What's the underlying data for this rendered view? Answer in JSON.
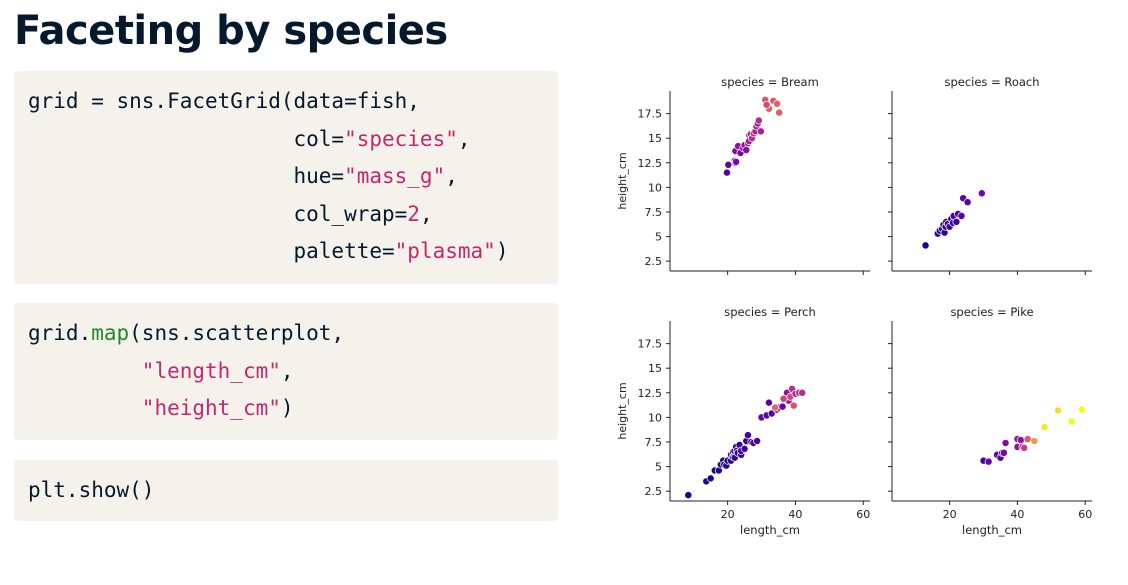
{
  "slide": {
    "title": "Faceting by species"
  },
  "code_blocks": [
    {
      "lines": [
        [
          {
            "t": "grid = sns.FacetGrid(data=fish,"
          }
        ],
        [
          {
            "t": "                     col="
          },
          {
            "t": "\"species\"",
            "c": "str"
          },
          {
            "t": ","
          }
        ],
        [
          {
            "t": "                     hue="
          },
          {
            "t": "\"mass_g\"",
            "c": "str"
          },
          {
            "t": ","
          }
        ],
        [
          {
            "t": "                     col_wrap="
          },
          {
            "t": "2",
            "c": "num"
          },
          {
            "t": ","
          }
        ],
        [
          {
            "t": "                     palette="
          },
          {
            "t": "\"plasma\"",
            "c": "str"
          },
          {
            "t": ")"
          }
        ]
      ]
    },
    {
      "lines": [
        [
          {
            "t": "grid."
          },
          {
            "t": "map",
            "c": "fn"
          },
          {
            "t": "(sns.scatterplot,"
          }
        ],
        [
          {
            "t": "         "
          },
          {
            "t": "\"length_cm\"",
            "c": "str"
          },
          {
            "t": ","
          }
        ],
        [
          {
            "t": "         "
          },
          {
            "t": "\"height_cm\"",
            "c": "str"
          },
          {
            "t": ")"
          }
        ]
      ]
    },
    {
      "lines": [
        [
          {
            "t": "plt.show()"
          }
        ]
      ]
    }
  ],
  "chart_data": {
    "type": "scatter",
    "layout": "facet-grid 2x2, shared axes",
    "xlabel": "length_cm",
    "ylabel": "height_cm",
    "xlim": [
      3,
      62
    ],
    "ylim": [
      1.5,
      19.8
    ],
    "xticks": [
      20,
      40,
      60
    ],
    "yticks": [
      2.5,
      5.0,
      7.5,
      10.0,
      12.5,
      15.0,
      17.5
    ],
    "palette": [
      "#0d0887",
      "#5302a3",
      "#8b0aa5",
      "#b83289",
      "#db5c68",
      "#f48849",
      "#febc2a",
      "#f0f921"
    ],
    "hue_range": [
      5,
      1650
    ],
    "facets": [
      {
        "title": "species = Bream",
        "points": [
          [
            19.8,
            11.5,
            242
          ],
          [
            20.2,
            12.3,
            290
          ],
          [
            22.1,
            12.7,
            340
          ],
          [
            22.3,
            12.5,
            363
          ],
          [
            22.5,
            12.6,
            430
          ],
          [
            22.3,
            13.7,
            450
          ],
          [
            23.1,
            14.2,
            500
          ],
          [
            23.8,
            13.5,
            390
          ],
          [
            24.6,
            14.0,
            450
          ],
          [
            25.0,
            14.3,
            500
          ],
          [
            25.5,
            13.8,
            475
          ],
          [
            26.0,
            14.5,
            500
          ],
          [
            26.4,
            15.3,
            500
          ],
          [
            26.3,
            14.7,
            600
          ],
          [
            26.8,
            15.4,
            600
          ],
          [
            27.2,
            15.0,
            700
          ],
          [
            27.7,
            15.5,
            700
          ],
          [
            28.2,
            15.7,
            610
          ],
          [
            28.5,
            16.2,
            650
          ],
          [
            28.9,
            16.5,
            575
          ],
          [
            29.2,
            16.8,
            685
          ],
          [
            29.8,
            15.7,
            620
          ],
          [
            31.1,
            18.9,
            920
          ],
          [
            32.2,
            18.0,
            955
          ],
          [
            33.5,
            18.8,
            925
          ],
          [
            34.6,
            18.5,
            975
          ],
          [
            35.2,
            17.6,
            950
          ],
          [
            31.5,
            18.4,
            850
          ]
        ]
      },
      {
        "title": "species = Roach",
        "points": [
          [
            12.9,
            4.1,
            40
          ],
          [
            16.5,
            5.3,
            69
          ],
          [
            17.1,
            5.6,
            78
          ],
          [
            17.8,
            5.8,
            87
          ],
          [
            18.5,
            5.4,
            120
          ],
          [
            18.2,
            6.2,
            110
          ],
          [
            18.8,
            6.0,
            120
          ],
          [
            19.0,
            6.5,
            150
          ],
          [
            19.5,
            6.3,
            145
          ],
          [
            20.0,
            6.0,
            160
          ],
          [
            20.5,
            6.8,
            140
          ],
          [
            21.0,
            6.4,
            160
          ],
          [
            21.2,
            7.1,
            169
          ],
          [
            22.0,
            6.5,
            161
          ],
          [
            22.5,
            7.3,
            200
          ],
          [
            23.5,
            7.1,
            270
          ],
          [
            24.0,
            8.9,
            272
          ],
          [
            25.3,
            8.5,
            250
          ],
          [
            29.5,
            9.4,
            390
          ]
        ]
      },
      {
        "title": "species = Perch",
        "points": [
          [
            8.4,
            2.1,
            6
          ],
          [
            13.7,
            3.5,
            32
          ],
          [
            15.0,
            3.8,
            40
          ],
          [
            16.2,
            4.6,
            51.5
          ],
          [
            17.4,
            4.6,
            70
          ],
          [
            18.0,
            5.2,
            100
          ],
          [
            18.7,
            5.6,
            78
          ],
          [
            19.0,
            5.2,
            80
          ],
          [
            19.6,
            5.1,
            85
          ],
          [
            20.0,
            5.6,
            85
          ],
          [
            21.0,
            6.2,
            110
          ],
          [
            21.0,
            5.6,
            115
          ],
          [
            21.5,
            6.0,
            125
          ],
          [
            21.6,
            6.5,
            130
          ],
          [
            22.0,
            6.1,
            120
          ],
          [
            22.0,
            6.6,
            120
          ],
          [
            22.1,
            5.9,
            130
          ],
          [
            22.5,
            7.0,
            135
          ],
          [
            22.7,
            6.6,
            110
          ],
          [
            23.0,
            6.4,
            130
          ],
          [
            23.5,
            7.2,
            150
          ],
          [
            24.0,
            6.2,
            145
          ],
          [
            24.0,
            6.6,
            150
          ],
          [
            25.0,
            6.8,
            170
          ],
          [
            25.5,
            7.5,
            225
          ],
          [
            25.5,
            7.6,
            145
          ],
          [
            26.0,
            8.2,
            188
          ],
          [
            27.0,
            7.5,
            180
          ],
          [
            27.6,
            7.4,
            197
          ],
          [
            28.7,
            7.6,
            218
          ],
          [
            30.0,
            10.0,
            300
          ],
          [
            31.5,
            10.2,
            260
          ],
          [
            32.2,
            11.5,
            265
          ],
          [
            33.0,
            10.4,
            250
          ],
          [
            34.5,
            10.8,
            250
          ],
          [
            35.0,
            11.0,
            300
          ],
          [
            36.2,
            11.1,
            320
          ],
          [
            37.5,
            12.5,
            514
          ],
          [
            38.0,
            11.7,
            556
          ],
          [
            38.5,
            12.1,
            840
          ],
          [
            39.0,
            12.9,
            685
          ],
          [
            40.0,
            12.4,
            700
          ],
          [
            41.1,
            12.5,
            700
          ],
          [
            42.0,
            12.5,
            690
          ],
          [
            39.5,
            11.2,
            900
          ],
          [
            34.0,
            11.0,
            1000
          ],
          [
            36.5,
            11.9,
            820
          ]
        ]
      },
      {
        "title": "species = Pike",
        "points": [
          [
            30.0,
            5.6,
            200
          ],
          [
            31.5,
            5.5,
            300
          ],
          [
            34.0,
            6.2,
            300
          ],
          [
            35.0,
            5.9,
            300
          ],
          [
            35.5,
            6.4,
            430
          ],
          [
            36.0,
            6.4,
            345
          ],
          [
            36.5,
            7.4,
            456
          ],
          [
            40.0,
            7.0,
            510
          ],
          [
            40.0,
            7.8,
            540
          ],
          [
            41.0,
            7.7,
            500
          ],
          [
            41.5,
            7.0,
            567
          ],
          [
            42.0,
            6.9,
            770
          ],
          [
            43.0,
            7.8,
            950
          ],
          [
            45.0,
            7.6,
            1250
          ],
          [
            48.0,
            9.0,
            1600
          ],
          [
            52.0,
            10.7,
            1550
          ],
          [
            56.0,
            9.6,
            1650
          ],
          [
            59.0,
            10.8,
            1650
          ]
        ]
      }
    ]
  }
}
